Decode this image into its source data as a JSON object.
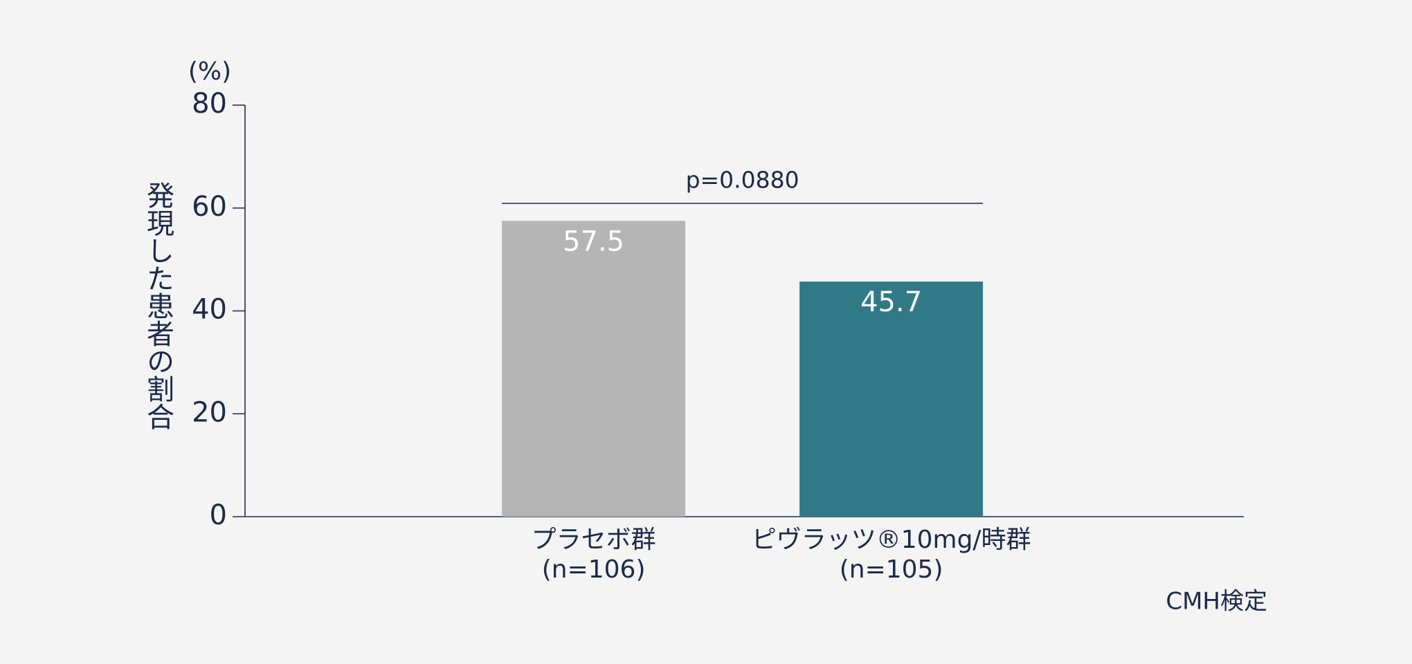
{
  "chart_data": {
    "type": "bar",
    "y_unit": "(%)",
    "ylabel": "発現した患者の割合",
    "categories": [
      "プラセボ群",
      "ピヴラッツ®10mg/時群"
    ],
    "category_notes": [
      "(n=106)",
      "(n=105)"
    ],
    "values": [
      57.5,
      45.7
    ],
    "colors": [
      "#b5b5b5",
      "#317987"
    ],
    "ylim": [
      0,
      80
    ],
    "yticks": [
      0,
      20,
      40,
      60,
      80
    ],
    "annotation": "p=0.0880",
    "footnote": "CMH検定"
  }
}
